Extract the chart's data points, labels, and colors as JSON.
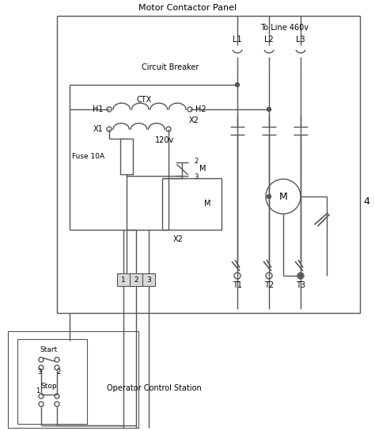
{
  "title": "Motor Contactor Panel",
  "ocs_label": "Operator Control Station",
  "to_line_label": "To Line 460v",
  "circuit_breaker_label": "Circuit Breaker",
  "fuse_label": "Fuse 10A",
  "voltage_label": "120v",
  "ctx_label": "CTX",
  "x2_label1": "X2",
  "x2_label2": "X2",
  "m_label": "M",
  "four_label": "4",
  "line_color": "#555555",
  "bg_color": "#ffffff",
  "lw": 1.0
}
